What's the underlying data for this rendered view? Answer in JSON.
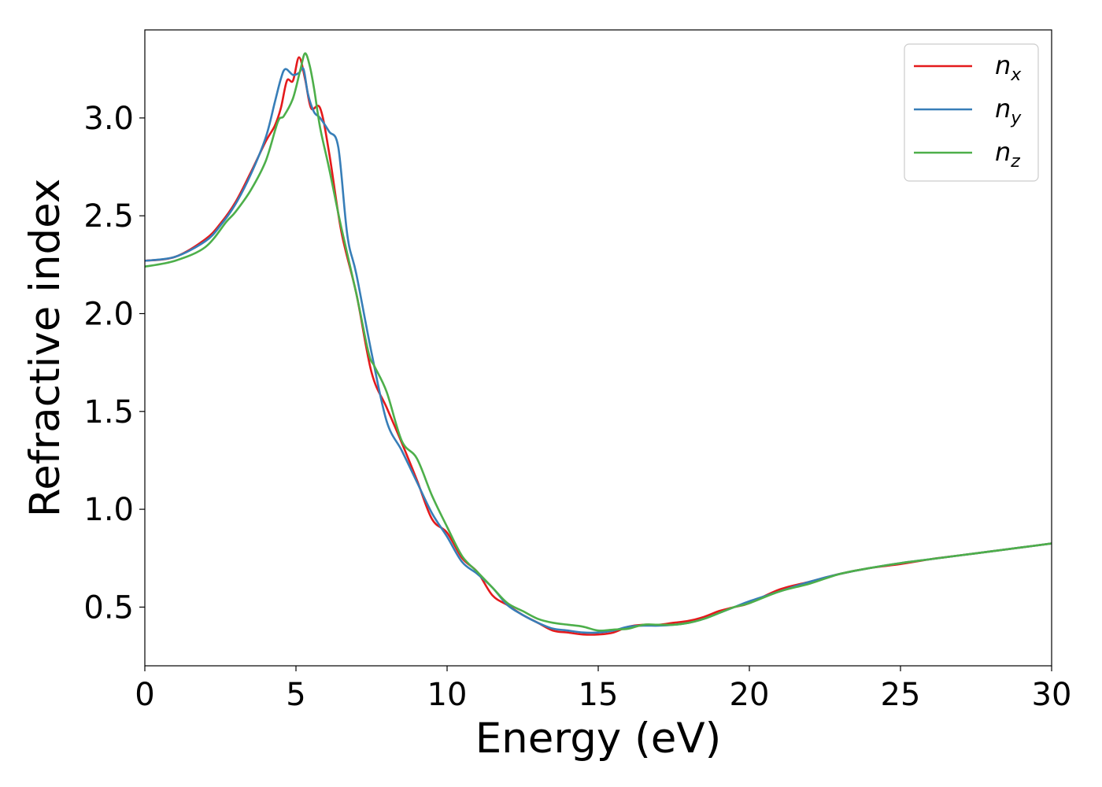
{
  "chart_data": {
    "type": "line",
    "title": "",
    "xlabel": "Energy (eV)",
    "ylabel": "Refractive index",
    "xlim": [
      0,
      30
    ],
    "ylim": [
      0.2,
      3.45
    ],
    "xticks": [
      0,
      5,
      10,
      15,
      20,
      25,
      30
    ],
    "xtick_labels": [
      "0",
      "5",
      "10",
      "15",
      "20",
      "25",
      "30"
    ],
    "yticks": [
      0.5,
      1.0,
      1.5,
      2.0,
      2.5,
      3.0
    ],
    "ytick_labels": [
      "0.5",
      "1.0",
      "1.5",
      "2.0",
      "2.5",
      "3.0"
    ],
    "grid": false,
    "legend_position": "top-right",
    "series": [
      {
        "name": "n_x",
        "label_base": "n",
        "label_sub": "x",
        "color": "#e41a1c",
        "x": [
          0,
          1,
          2,
          2.5,
          3,
          3.5,
          4,
          4.3,
          4.5,
          4.7,
          4.9,
          5.1,
          5.3,
          5.5,
          5.8,
          6.1,
          6.5,
          7,
          7.5,
          8,
          8.5,
          9,
          9.5,
          10,
          10.5,
          11,
          11.5,
          12,
          12.5,
          13,
          13.5,
          14,
          14.5,
          15,
          15.5,
          16,
          16.5,
          17,
          17.5,
          18,
          18.5,
          19,
          19.5,
          20,
          21,
          22,
          23,
          24,
          25,
          26,
          27,
          28,
          29,
          30
        ],
        "y": [
          2.27,
          2.29,
          2.38,
          2.46,
          2.57,
          2.72,
          2.88,
          2.96,
          3.05,
          3.19,
          3.19,
          3.31,
          3.2,
          3.05,
          3.05,
          2.82,
          2.42,
          2.1,
          1.7,
          1.52,
          1.34,
          1.15,
          0.95,
          0.88,
          0.75,
          0.68,
          0.56,
          0.51,
          0.46,
          0.42,
          0.38,
          0.37,
          0.36,
          0.36,
          0.37,
          0.4,
          0.41,
          0.41,
          0.42,
          0.43,
          0.45,
          0.48,
          0.5,
          0.52,
          0.59,
          0.63,
          0.67,
          0.7,
          0.72,
          0.745,
          0.765,
          0.785,
          0.805,
          0.825
        ]
      },
      {
        "name": "n_y",
        "label_base": "n",
        "label_sub": "y",
        "color": "#377eb8",
        "x": [
          0,
          1,
          2,
          2.5,
          3,
          3.5,
          4,
          4.3,
          4.5,
          4.65,
          4.9,
          5.1,
          5.25,
          5.4,
          5.6,
          5.8,
          6.1,
          6.4,
          6.7,
          7,
          7.5,
          8,
          8.5,
          9,
          9.5,
          10,
          10.5,
          11,
          11.5,
          12,
          12.5,
          13,
          13.5,
          14,
          14.5,
          15,
          15.5,
          16,
          16.5,
          17,
          17.5,
          18,
          18.5,
          19,
          19.5,
          20,
          21,
          22,
          23,
          24,
          25,
          26,
          27,
          28,
          29,
          30
        ],
        "y": [
          2.27,
          2.29,
          2.37,
          2.45,
          2.56,
          2.71,
          2.9,
          3.08,
          3.2,
          3.25,
          3.22,
          3.23,
          3.25,
          3.12,
          3.03,
          3.0,
          2.93,
          2.85,
          2.4,
          2.2,
          1.8,
          1.45,
          1.3,
          1.14,
          0.98,
          0.86,
          0.73,
          0.67,
          0.6,
          0.51,
          0.46,
          0.42,
          0.39,
          0.38,
          0.37,
          0.37,
          0.38,
          0.4,
          0.405,
          0.405,
          0.41,
          0.42,
          0.44,
          0.47,
          0.5,
          0.53,
          0.58,
          0.63,
          0.67,
          0.7,
          0.725,
          0.745,
          0.765,
          0.785,
          0.805,
          0.825
        ]
      },
      {
        "name": "n_z",
        "label_base": "n",
        "label_sub": "z",
        "color": "#4daf4a",
        "x": [
          0,
          1,
          2,
          2.7,
          3,
          3.5,
          4,
          4.4,
          4.6,
          4.9,
          5.15,
          5.3,
          5.45,
          5.6,
          5.8,
          6.1,
          6.5,
          7,
          7.4,
          7.6,
          8,
          8.5,
          9,
          9.5,
          10,
          10.5,
          11,
          11.5,
          12,
          12.5,
          13,
          13.5,
          14,
          14.5,
          15,
          15.5,
          16,
          16.5,
          17,
          17.5,
          18,
          18.5,
          19,
          19.5,
          20,
          21,
          22,
          23,
          24,
          25,
          26,
          27,
          28,
          29,
          30
        ],
        "y": [
          2.24,
          2.27,
          2.34,
          2.47,
          2.52,
          2.63,
          2.78,
          2.98,
          3.01,
          3.1,
          3.25,
          3.33,
          3.27,
          3.15,
          2.95,
          2.74,
          2.44,
          2.1,
          1.8,
          1.73,
          1.6,
          1.35,
          1.26,
          1.07,
          0.91,
          0.76,
          0.68,
          0.6,
          0.52,
          0.48,
          0.44,
          0.42,
          0.41,
          0.4,
          0.38,
          0.385,
          0.39,
          0.41,
          0.41,
          0.41,
          0.42,
          0.44,
          0.47,
          0.5,
          0.52,
          0.58,
          0.62,
          0.67,
          0.7,
          0.725,
          0.745,
          0.765,
          0.785,
          0.805,
          0.825
        ]
      }
    ]
  }
}
